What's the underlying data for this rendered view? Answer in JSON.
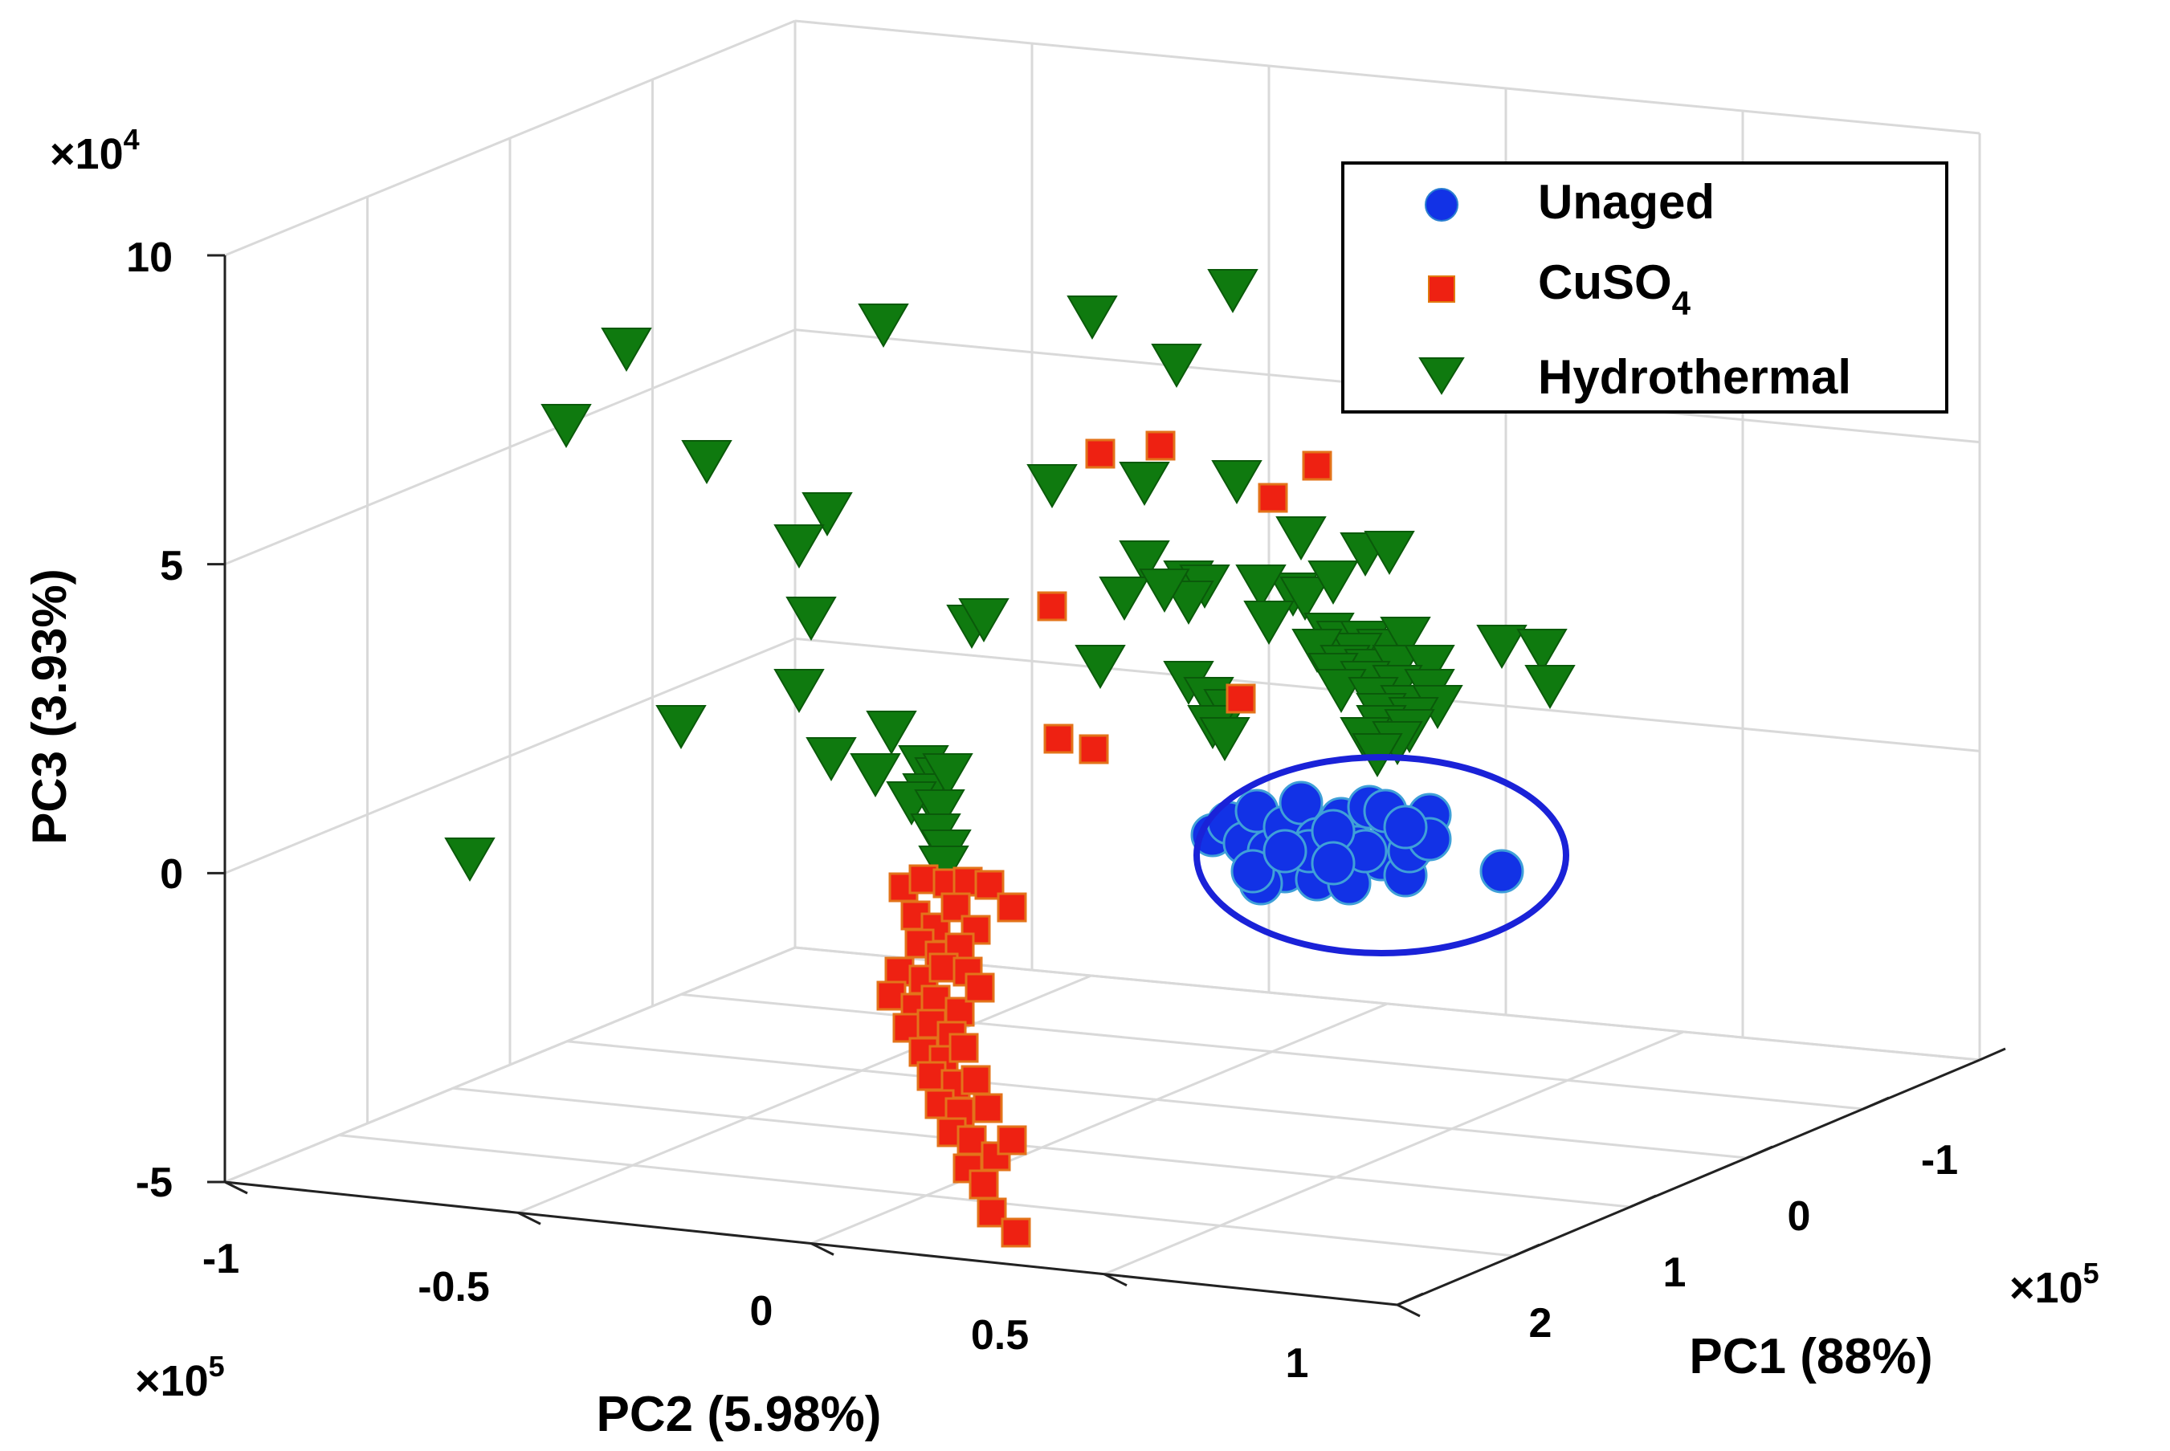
{
  "chart_data": {
    "type": "scatter3d",
    "axes": {
      "x": {
        "label": "PC1 (88%)",
        "range": [
          -1.5,
          2.5
        ],
        "ticks": [
          "-1",
          "0",
          "1",
          "2"
        ],
        "multiplier_base": "×10",
        "multiplier_exp": "5"
      },
      "y": {
        "label": "PC2 (5.98%)",
        "range": [
          -1,
          1
        ],
        "ticks": [
          "-1",
          "-0.5",
          "0",
          "0.5",
          "1"
        ],
        "multiplier_base": "×10",
        "multiplier_exp": "5"
      },
      "z": {
        "label": "PC3 (3.93%)",
        "range": [
          -5,
          10
        ],
        "ticks": [
          "10",
          "5",
          "0",
          "-5"
        ],
        "multiplier_base": "×10",
        "multiplier_exp": "4"
      }
    },
    "grid": true,
    "legend": {
      "placement": "top-right"
    },
    "series": [
      {
        "name_text": "Unaged",
        "marker": "circle",
        "color": "#1232e6",
        "points": [
          [
            1510,
            1040
          ],
          [
            1530,
            1025
          ],
          [
            1550,
            1050
          ],
          [
            1565,
            1010
          ],
          [
            1580,
            1060
          ],
          [
            1600,
            1030
          ],
          [
            1620,
            1000
          ],
          [
            1640,
            1045
          ],
          [
            1655,
            1080
          ],
          [
            1670,
            1020
          ],
          [
            1690,
            1055
          ],
          [
            1705,
            1005
          ],
          [
            1720,
            1070
          ],
          [
            1735,
            1035
          ],
          [
            1750,
            1090
          ],
          [
            1765,
            1050
          ],
          [
            1780,
            1015
          ],
          [
            1600,
            1085
          ],
          [
            1570,
            1100
          ],
          [
            1640,
            1095
          ],
          [
            1680,
            1100
          ],
          [
            1700,
            1060
          ],
          [
            1725,
            1010
          ],
          [
            1630,
            1060
          ],
          [
            1660,
            1035
          ],
          [
            1755,
            1060
          ],
          [
            1780,
            1045
          ],
          [
            1560,
            1085
          ],
          [
            1600,
            1060
          ],
          [
            1660,
            1075
          ],
          [
            1750,
            1030
          ],
          [
            1870,
            1085
          ]
        ]
      },
      {
        "name_text": "CuSO",
        "name_sub": "4",
        "marker": "square",
        "color": "#ee2112",
        "points": [
          [
            1370,
            565
          ],
          [
            1445,
            555
          ],
          [
            1640,
            580
          ],
          [
            1585,
            620
          ],
          [
            1310,
            755
          ],
          [
            1545,
            870
          ],
          [
            1318,
            920
          ],
          [
            1362,
            933
          ],
          [
            1125,
            1105
          ],
          [
            1150,
            1095
          ],
          [
            1180,
            1100
          ],
          [
            1205,
            1098
          ],
          [
            1232,
            1102
          ],
          [
            1260,
            1130
          ],
          [
            1140,
            1140
          ],
          [
            1165,
            1155
          ],
          [
            1190,
            1130
          ],
          [
            1215,
            1158
          ],
          [
            1145,
            1175
          ],
          [
            1170,
            1190
          ],
          [
            1195,
            1180
          ],
          [
            1120,
            1210
          ],
          [
            1150,
            1220
          ],
          [
            1175,
            1205
          ],
          [
            1205,
            1210
          ],
          [
            1110,
            1240
          ],
          [
            1140,
            1255
          ],
          [
            1165,
            1245
          ],
          [
            1195,
            1260
          ],
          [
            1220,
            1230
          ],
          [
            1130,
            1280
          ],
          [
            1160,
            1275
          ],
          [
            1185,
            1290
          ],
          [
            1150,
            1310
          ],
          [
            1175,
            1320
          ],
          [
            1200,
            1305
          ],
          [
            1160,
            1340
          ],
          [
            1190,
            1350
          ],
          [
            1215,
            1345
          ],
          [
            1170,
            1375
          ],
          [
            1195,
            1385
          ],
          [
            1230,
            1380
          ],
          [
            1185,
            1410
          ],
          [
            1210,
            1420
          ],
          [
            1240,
            1440
          ],
          [
            1205,
            1455
          ],
          [
            1225,
            1475
          ],
          [
            1260,
            1420
          ],
          [
            1235,
            1510
          ],
          [
            1265,
            1535
          ]
        ]
      },
      {
        "name_text": "Hydrothermal",
        "marker": "triangle-down",
        "color": "#0f7a0f",
        "points": [
          [
            780,
            435
          ],
          [
            705,
            530
          ],
          [
            880,
            575
          ],
          [
            1100,
            405
          ],
          [
            1360,
            395
          ],
          [
            1535,
            362
          ],
          [
            1465,
            455
          ],
          [
            1030,
            640
          ],
          [
            995,
            680
          ],
          [
            1310,
            605
          ],
          [
            1425,
            602
          ],
          [
            1540,
            600
          ],
          [
            1010,
            770
          ],
          [
            1210,
            780
          ],
          [
            1225,
            772
          ],
          [
            1620,
            670
          ],
          [
            1610,
            740
          ],
          [
            1700,
            690
          ],
          [
            1730,
            688
          ],
          [
            1425,
            700
          ],
          [
            1480,
            725
          ],
          [
            1500,
            730
          ],
          [
            1570,
            730
          ],
          [
            1625,
            745
          ],
          [
            1660,
            725
          ],
          [
            1400,
            745
          ],
          [
            1480,
            750
          ],
          [
            1450,
            735
          ],
          [
            1580,
            775
          ],
          [
            1655,
            790
          ],
          [
            1670,
            800
          ],
          [
            1700,
            800
          ],
          [
            1720,
            810
          ],
          [
            1750,
            795
          ],
          [
            1690,
            815
          ],
          [
            1640,
            810
          ],
          [
            1675,
            830
          ],
          [
            1705,
            835
          ],
          [
            1740,
            830
          ],
          [
            1780,
            830
          ],
          [
            1660,
            840
          ],
          [
            1700,
            850
          ],
          [
            1740,
            855
          ],
          [
            1780,
            860
          ],
          [
            1670,
            860
          ],
          [
            1710,
            870
          ],
          [
            1750,
            880
          ],
          [
            1790,
            880
          ],
          [
            1720,
            890
          ],
          [
            1760,
            895
          ],
          [
            1720,
            905
          ],
          [
            1755,
            910
          ],
          [
            1700,
            920
          ],
          [
            1740,
            925
          ],
          [
            1715,
            940
          ],
          [
            1870,
            805
          ],
          [
            1920,
            810
          ],
          [
            1930,
            855
          ],
          [
            1370,
            830
          ],
          [
            1480,
            850
          ],
          [
            1505,
            870
          ],
          [
            1530,
            885
          ],
          [
            1510,
            905
          ],
          [
            1525,
            920
          ],
          [
            995,
            860
          ],
          [
            848,
            905
          ],
          [
            1110,
            912
          ],
          [
            1035,
            945
          ],
          [
            1090,
            965
          ],
          [
            1150,
            955
          ],
          [
            1170,
            970
          ],
          [
            1155,
            990
          ],
          [
            1180,
            965
          ],
          [
            1135,
            1000
          ],
          [
            1170,
            1010
          ],
          [
            1165,
            1040
          ],
          [
            1178,
            1060
          ],
          [
            1175,
            1080
          ],
          [
            585,
            1070
          ]
        ]
      }
    ]
  }
}
